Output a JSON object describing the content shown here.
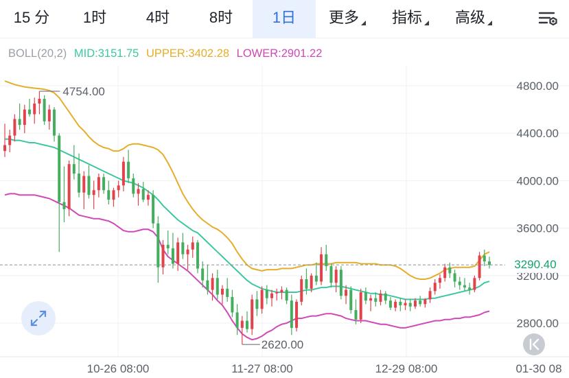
{
  "tabs": [
    {
      "label": "15 分",
      "active": false,
      "dropdown": false
    },
    {
      "label": "1时",
      "active": false,
      "dropdown": false
    },
    {
      "label": "4时",
      "active": false,
      "dropdown": false
    },
    {
      "label": "8时",
      "active": false,
      "dropdown": false
    },
    {
      "label": "1日",
      "active": true,
      "dropdown": false
    },
    {
      "label": "更多",
      "active": false,
      "dropdown": true
    },
    {
      "label": "指标",
      "active": false,
      "dropdown": true
    },
    {
      "label": "高级",
      "active": false,
      "dropdown": true
    }
  ],
  "settings_icon": "chart-settings-icon",
  "indicator": {
    "name": "BOLL(20,2)",
    "mid": "MID:3151.75",
    "upper": "UPPER:3402.28",
    "lower": "LOWER:2901.22",
    "colors": {
      "name": "#9aa0a8",
      "mid": "#3cc7a1",
      "upper": "#e6ad2a",
      "lower": "#cf48b6"
    }
  },
  "price_axis": {
    "labels": [
      "4800.00",
      "4400.00",
      "4000.00",
      "3600.00",
      "3200.00",
      "2800.00"
    ],
    "values": [
      4800,
      4400,
      4000,
      3600,
      3200,
      2800
    ]
  },
  "time_axis": [
    "10-26 08:00",
    "11-27 08:00",
    "12-29 08:00",
    "01-30 08"
  ],
  "current_price": {
    "label": "3290.40",
    "value": 3290.4
  },
  "high_marker": {
    "label": "4754.00",
    "value": 4754
  },
  "low_marker": {
    "label": "2620.00",
    "value": 2620
  },
  "colors": {
    "up": "#e0434c",
    "down": "#44ad5f",
    "grid": "#eef0f3",
    "axis_text": "#5b6068"
  },
  "chart_data": {
    "type": "candlestick",
    "series_names": [
      "MID",
      "UPPER",
      "LOWER"
    ],
    "y_range": [
      2560,
      4960
    ],
    "candles": [
      [
        4250,
        4480,
        4200,
        4300
      ],
      [
        4300,
        4430,
        4240,
        4380
      ],
      [
        4380,
        4560,
        4330,
        4520
      ],
      [
        4520,
        4650,
        4430,
        4470
      ],
      [
        4470,
        4640,
        4400,
        4600
      ],
      [
        4600,
        4690,
        4540,
        4560
      ],
      [
        4560,
        4700,
        4480,
        4650
      ],
      [
        4650,
        4754,
        4560,
        4690
      ],
      [
        4690,
        4720,
        4470,
        4500
      ],
      [
        4500,
        4640,
        4430,
        4600
      ],
      [
        4600,
        4620,
        4330,
        4380
      ],
      [
        4380,
        4400,
        3400,
        3820
      ],
      [
        3820,
        4120,
        3650,
        3760
      ],
      [
        3760,
        4170,
        3700,
        4140
      ],
      [
        4140,
        4300,
        4010,
        4060
      ],
      [
        4060,
        4230,
        3860,
        3900
      ],
      [
        3900,
        4080,
        3760,
        4040
      ],
      [
        4040,
        4130,
        3850,
        3880
      ],
      [
        3880,
        4000,
        3760,
        3920
      ],
      [
        3920,
        4060,
        3860,
        4030
      ],
      [
        4030,
        4060,
        3890,
        3920
      ],
      [
        3920,
        4000,
        3800,
        3840
      ],
      [
        3840,
        3940,
        3780,
        3920
      ],
      [
        3920,
        4000,
        3860,
        3960
      ],
      [
        3960,
        4200,
        3910,
        4160
      ],
      [
        4160,
        4260,
        3980,
        4020
      ],
      [
        4020,
        4060,
        3860,
        3890
      ],
      [
        3890,
        3980,
        3790,
        3930
      ],
      [
        3930,
        3990,
        3820,
        3840
      ],
      [
        3840,
        3920,
        3790,
        3880
      ],
      [
        3880,
        3920,
        3600,
        3640
      ],
      [
        3640,
        3700,
        3140,
        3270
      ],
      [
        3270,
        3500,
        3210,
        3460
      ],
      [
        3460,
        3580,
        3380,
        3430
      ],
      [
        3430,
        3560,
        3260,
        3300
      ],
      [
        3300,
        3520,
        3240,
        3480
      ],
      [
        3480,
        3560,
        3340,
        3380
      ],
      [
        3380,
        3460,
        3250,
        3420
      ],
      [
        3420,
        3530,
        3350,
        3480
      ],
      [
        3480,
        3500,
        3220,
        3260
      ],
      [
        3260,
        3320,
        3100,
        3160
      ],
      [
        3160,
        3290,
        3040,
        3080
      ],
      [
        3080,
        3220,
        2990,
        3180
      ],
      [
        3180,
        3250,
        3000,
        3040
      ],
      [
        3040,
        3120,
        2960,
        3090
      ],
      [
        3090,
        3180,
        2980,
        3020
      ],
      [
        3020,
        3080,
        2850,
        2890
      ],
      [
        2890,
        2960,
        2700,
        2760
      ],
      [
        2760,
        2860,
        2620,
        2820
      ],
      [
        2820,
        2900,
        2720,
        2750
      ],
      [
        2750,
        3040,
        2700,
        3000
      ],
      [
        3000,
        3070,
        2860,
        2920
      ],
      [
        2920,
        3110,
        2880,
        3080
      ],
      [
        3080,
        3120,
        2960,
        3010
      ],
      [
        3010,
        3080,
        2940,
        3050
      ],
      [
        3050,
        3090,
        2990,
        3060
      ],
      [
        3060,
        3110,
        3000,
        3080
      ],
      [
        3080,
        3100,
        2960,
        2990
      ],
      [
        2990,
        3040,
        2700,
        2760
      ],
      [
        2760,
        3000,
        2730,
        2980
      ],
      [
        2980,
        3200,
        2950,
        3170
      ],
      [
        3170,
        3260,
        3040,
        3090
      ],
      [
        3090,
        3220,
        3060,
        3200
      ],
      [
        3200,
        3310,
        3120,
        3150
      ],
      [
        3150,
        3440,
        3120,
        3380
      ],
      [
        3380,
        3460,
        3240,
        3280
      ],
      [
        3280,
        3300,
        3100,
        3140
      ],
      [
        3140,
        3280,
        3060,
        3250
      ],
      [
        3250,
        3280,
        3000,
        3030
      ],
      [
        3030,
        3120,
        2960,
        3080
      ],
      [
        3080,
        3110,
        2880,
        2910
      ],
      [
        2910,
        3000,
        2790,
        2830
      ],
      [
        2830,
        3090,
        2800,
        3060
      ],
      [
        3060,
        3100,
        2960,
        2990
      ],
      [
        2990,
        3040,
        2900,
        3010
      ],
      [
        3010,
        3060,
        2940,
        2980
      ],
      [
        2980,
        3080,
        2950,
        3050
      ],
      [
        3050,
        3070,
        2960,
        2990
      ],
      [
        2990,
        3020,
        2910,
        2930
      ],
      [
        2930,
        3000,
        2900,
        2980
      ],
      [
        2980,
        3010,
        2900,
        2950
      ],
      [
        2950,
        3000,
        2910,
        2970
      ],
      [
        2970,
        3000,
        2900,
        2940
      ],
      [
        2940,
        3010,
        2920,
        2990
      ],
      [
        2990,
        3030,
        2940,
        2960
      ],
      [
        2960,
        3010,
        2930,
        3000
      ],
      [
        3000,
        3100,
        2970,
        3070
      ],
      [
        3070,
        3170,
        3040,
        3140
      ],
      [
        3140,
        3210,
        3090,
        3180
      ],
      [
        3180,
        3300,
        3150,
        3270
      ],
      [
        3270,
        3310,
        3180,
        3220
      ],
      [
        3220,
        3250,
        3100,
        3150
      ],
      [
        3150,
        3190,
        3080,
        3120
      ],
      [
        3120,
        3180,
        3070,
        3100
      ],
      [
        3100,
        3140,
        3040,
        3080
      ],
      [
        3080,
        3200,
        3060,
        3180
      ],
      [
        3180,
        3400,
        3160,
        3370
      ],
      [
        3370,
        3420,
        3280,
        3320
      ],
      [
        3320,
        3360,
        3260,
        3290.4
      ]
    ],
    "upper": [
      4840,
      4825,
      4810,
      4800,
      4790,
      4785,
      4780,
      4775,
      4770,
      4760,
      4740,
      4700,
      4640,
      4580,
      4520,
      4460,
      4420,
      4370,
      4330,
      4300,
      4280,
      4270,
      4250,
      4250,
      4270,
      4300,
      4310,
      4310,
      4300,
      4290,
      4280,
      4260,
      4220,
      4150,
      4070,
      3980,
      3890,
      3820,
      3760,
      3710,
      3670,
      3640,
      3610,
      3590,
      3560,
      3520,
      3470,
      3400,
      3340,
      3290,
      3260,
      3250,
      3240,
      3250,
      3250,
      3250,
      3260,
      3260,
      3260,
      3270,
      3280,
      3290,
      3290,
      3300,
      3300,
      3300,
      3300,
      3310,
      3310,
      3310,
      3310,
      3310,
      3300,
      3300,
      3300,
      3300,
      3290,
      3290,
      3290,
      3280,
      3260,
      3230,
      3200,
      3180,
      3170,
      3170,
      3180,
      3200,
      3220,
      3250,
      3260,
      3270,
      3270,
      3270,
      3270,
      3280,
      3330,
      3380,
      3400
    ],
    "mid": [
      4350,
      4350,
      4340,
      4340,
      4330,
      4320,
      4320,
      4310,
      4300,
      4290,
      4280,
      4260,
      4240,
      4220,
      4200,
      4180,
      4160,
      4140,
      4120,
      4100,
      4080,
      4060,
      4040,
      4020,
      4000,
      3990,
      3980,
      3960,
      3940,
      3910,
      3880,
      3840,
      3790,
      3750,
      3710,
      3670,
      3640,
      3610,
      3580,
      3560,
      3520,
      3480,
      3440,
      3400,
      3360,
      3320,
      3280,
      3240,
      3200,
      3160,
      3130,
      3110,
      3090,
      3080,
      3070,
      3060,
      3060,
      3060,
      3060,
      3060,
      3070,
      3080,
      3080,
      3090,
      3100,
      3100,
      3110,
      3110,
      3110,
      3100,
      3090,
      3080,
      3070,
      3060,
      3050,
      3050,
      3040,
      3040,
      3030,
      3020,
      3010,
      3000,
      3000,
      3000,
      3000,
      3000,
      3010,
      3010,
      3020,
      3030,
      3040,
      3050,
      3060,
      3070,
      3080,
      3090,
      3110,
      3140,
      3151.75
    ],
    "lower": [
      3880,
      3890,
      3890,
      3880,
      3880,
      3880,
      3880,
      3870,
      3860,
      3850,
      3830,
      3810,
      3790,
      3770,
      3740,
      3710,
      3700,
      3690,
      3680,
      3680,
      3670,
      3660,
      3640,
      3610,
      3580,
      3570,
      3570,
      3580,
      3590,
      3590,
      3570,
      3520,
      3420,
      3360,
      3330,
      3300,
      3270,
      3240,
      3200,
      3160,
      3120,
      3080,
      3040,
      2990,
      2950,
      2890,
      2820,
      2760,
      2710,
      2680,
      2660,
      2670,
      2690,
      2720,
      2740,
      2770,
      2790,
      2800,
      2820,
      2840,
      2840,
      2850,
      2860,
      2860,
      2870,
      2880,
      2880,
      2870,
      2860,
      2840,
      2830,
      2820,
      2820,
      2820,
      2810,
      2800,
      2790,
      2790,
      2780,
      2770,
      2760,
      2760,
      2770,
      2780,
      2790,
      2800,
      2810,
      2820,
      2820,
      2830,
      2830,
      2840,
      2840,
      2850,
      2850,
      2860,
      2870,
      2890,
      2901.22
    ],
    "xlabels": [
      "10-26 08:00",
      "11-27 08:00",
      "12-29 08:00",
      "01-30 08"
    ]
  }
}
